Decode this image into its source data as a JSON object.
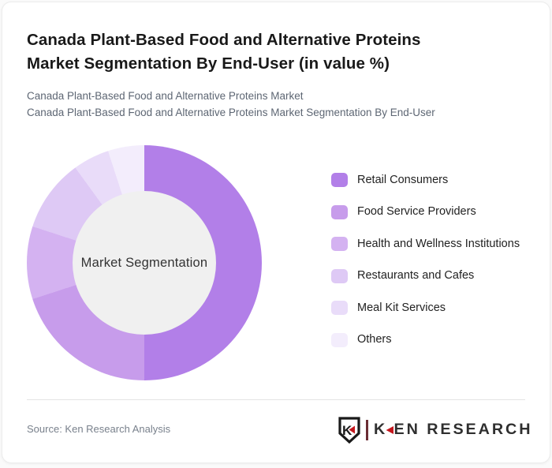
{
  "page": {
    "title": "Canada Plant-Based Food and Alternative Proteins Market Segmentation By End-User (in value %)",
    "title_lines": [
      "Canada Plant-Based Food and Alternative Proteins",
      "Market Segmentation By End-User (in value %)"
    ],
    "subtitle_line1": "Canada Plant-Based Food and Alternative Proteins Market",
    "subtitle_line2": "Canada Plant-Based Food and Alternative Proteins Market Segmentation By End-User"
  },
  "chart_data": {
    "type": "pie",
    "variant": "donut",
    "title": "Canada Plant-Based Food and Alternative Proteins Market Segmentation By End-User (in value %)",
    "center_label": "Market Segmentation",
    "unit": "value %",
    "start_angle_deg": 0,
    "direction": "clockwise",
    "legend_position": "right",
    "categories": [
      "Retail Consumers",
      "Food Service Providers",
      "Health and Wellness Institutions",
      "Restaurants and Cafes",
      "Meal Kit Services",
      "Others"
    ],
    "values": [
      50,
      20,
      10,
      10,
      5,
      5
    ],
    "colors": [
      "#b27fe8",
      "#c79ceb",
      "#d4b2f1",
      "#dec9f5",
      "#e9dcf9",
      "#f3edfc"
    ],
    "inner_circle_color": "#f0f0f0"
  },
  "footer": {
    "source": "Source: Ken Research Analysis",
    "logo": {
      "emblem_letter": "K",
      "brand": "KEN RESEARCH",
      "brand_k": "K",
      "brand_rest": "EN RESEARCH",
      "accent_color": "#c4161c"
    }
  }
}
